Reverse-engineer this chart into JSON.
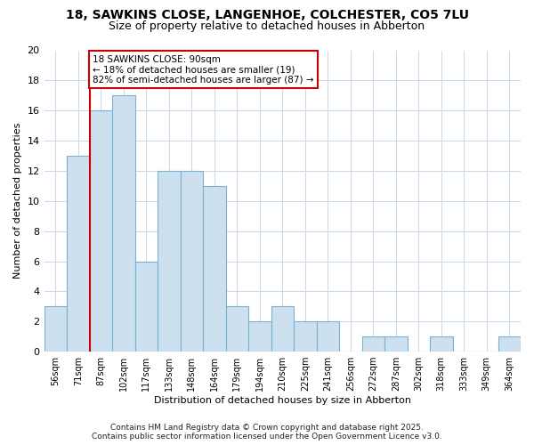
{
  "title": "18, SAWKINS CLOSE, LANGENHOE, COLCHESTER, CO5 7LU",
  "subtitle": "Size of property relative to detached houses in Abberton",
  "xlabel": "Distribution of detached houses by size in Abberton",
  "ylabel": "Number of detached properties",
  "bar_color": "#cce0f0",
  "bar_edge_color": "#7ab0d0",
  "categories": [
    "56sqm",
    "71sqm",
    "87sqm",
    "102sqm",
    "117sqm",
    "133sqm",
    "148sqm",
    "164sqm",
    "179sqm",
    "194sqm",
    "210sqm",
    "225sqm",
    "241sqm",
    "256sqm",
    "272sqm",
    "287sqm",
    "302sqm",
    "318sqm",
    "333sqm",
    "349sqm",
    "364sqm"
  ],
  "values": [
    3,
    13,
    16,
    17,
    6,
    12,
    12,
    11,
    3,
    2,
    3,
    2,
    2,
    0,
    1,
    1,
    0,
    1,
    0,
    0,
    1
  ],
  "ylim": [
    0,
    20
  ],
  "yticks": [
    0,
    2,
    4,
    6,
    8,
    10,
    12,
    14,
    16,
    18,
    20
  ],
  "property_line_index": 2,
  "property_line_color": "#cc0000",
  "annotation_text": "18 SAWKINS CLOSE: 90sqm\n← 18% of detached houses are smaller (19)\n82% of semi-detached houses are larger (87) →",
  "footer_line1": "Contains HM Land Registry data © Crown copyright and database right 2025.",
  "footer_line2": "Contains public sector information licensed under the Open Government Licence v3.0.",
  "background_color": "#ffffff",
  "plot_background": "#ffffff",
  "grid_color": "#c8d8e8"
}
